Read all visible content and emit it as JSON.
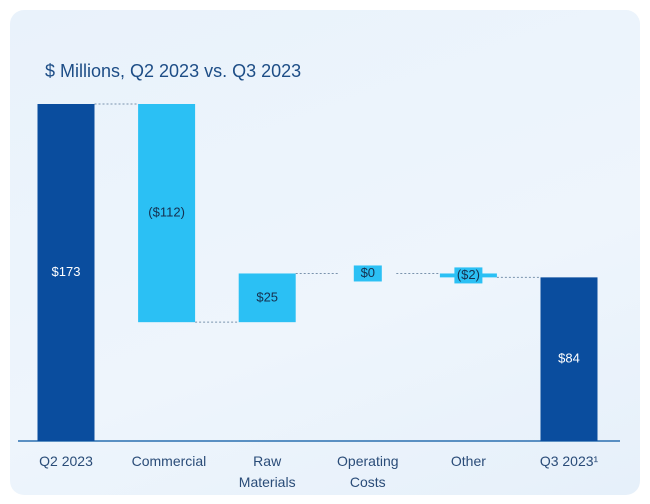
{
  "chart_data": {
    "type": "waterfall",
    "title": "$ Millions, Q2 2023 vs. Q3 2023",
    "categories": [
      "Q2 2023",
      "Commercial",
      "Raw Materials",
      "Operating Costs",
      "Other",
      "Q3 2023¹"
    ],
    "values": [
      173,
      -112,
      25,
      0,
      -2,
      84
    ],
    "value_labels": [
      "$173",
      "($112)",
      "$25",
      "$0",
      "($2)",
      "$84"
    ],
    "total_color": "#0a4d9e",
    "change_color": "#2bc0f4"
  }
}
